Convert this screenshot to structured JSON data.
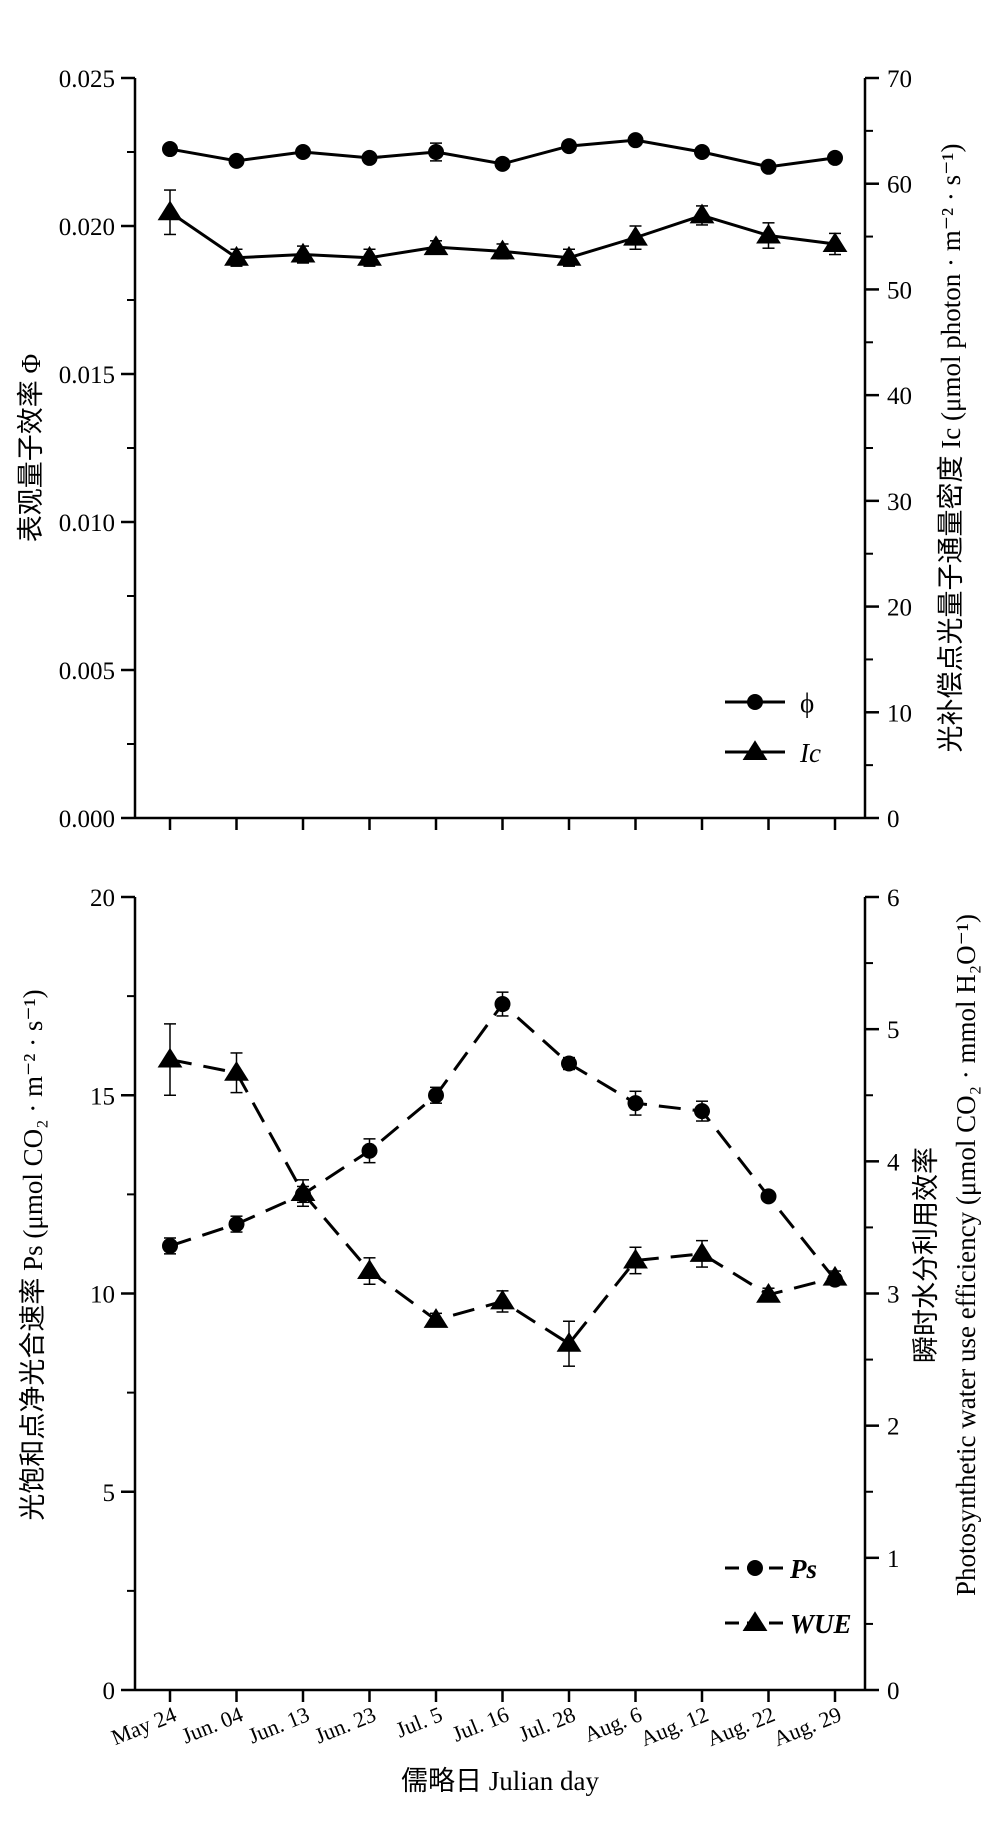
{
  "chart_data": [
    {
      "type": "line",
      "panel": "top",
      "x_categories": [
        "May 24",
        "Jun. 04",
        "Jun. 13",
        "Jun. 23",
        "Jul. 5",
        "Jul. 16",
        "Jul. 28",
        "Aug. 6",
        "Aug. 12",
        "Aug. 22",
        "Aug. 29"
      ],
      "left_axis": {
        "label": "表观量子效率 Φ",
        "ylim": [
          0.0,
          0.025
        ],
        "ticks": [
          0.0,
          0.005,
          0.01,
          0.015,
          0.02,
          0.025
        ],
        "tick_labels": [
          "0.000",
          "0.005",
          "0.010",
          "0.015",
          "0.020",
          "0.025"
        ]
      },
      "right_axis": {
        "label": "光补偿点光量子通量密度 Ic (μmol photon · m⁻² · s⁻¹)",
        "ylim": [
          0,
          70
        ],
        "ticks": [
          0,
          10,
          20,
          30,
          40,
          50,
          60,
          70
        ],
        "tick_labels": [
          "0",
          "10",
          "20",
          "30",
          "40",
          "50",
          "60",
          "70"
        ]
      },
      "series": [
        {
          "name": "ϕ",
          "axis": "left",
          "marker": "circle",
          "line": "solid",
          "values": [
            0.0226,
            0.0222,
            0.0225,
            0.0223,
            0.0225,
            0.0221,
            0.0227,
            0.0229,
            0.0225,
            0.022,
            0.0223
          ],
          "errors": [
            0.0001,
            0.0001,
            0.0001,
            0.0001,
            0.0003,
            0.0001,
            0.0001,
            0.0001,
            0.0001,
            0.0001,
            0.0001
          ]
        },
        {
          "name": "Ic",
          "axis": "right",
          "marker": "triangle",
          "line": "solid",
          "values": [
            57.3,
            53.0,
            53.3,
            53.0,
            54.0,
            53.6,
            53.0,
            54.9,
            57.0,
            55.1,
            54.3
          ],
          "errors": [
            2.1,
            0.8,
            0.8,
            0.8,
            0.6,
            0.7,
            0.8,
            1.1,
            0.9,
            1.2,
            1.0
          ]
        }
      ],
      "legend": {
        "position": "bottom-right"
      }
    },
    {
      "type": "line",
      "panel": "bottom",
      "x_categories": [
        "May 24",
        "Jun. 04",
        "Jun. 13",
        "Jun. 23",
        "Jul. 5",
        "Jul. 16",
        "Jul. 28",
        "Aug. 6",
        "Aug. 12",
        "Aug. 22",
        "Aug. 29"
      ],
      "xlabel": "儒略日 Julian day",
      "left_axis": {
        "label": "光饱和点净光合速率 Ps (μmol CO₂ · m⁻² · s⁻¹)",
        "ylim": [
          0,
          20
        ],
        "ticks": [
          0,
          5,
          10,
          15,
          20
        ],
        "tick_labels": [
          "0",
          "5",
          "10",
          "15",
          "20"
        ]
      },
      "right_axis": {
        "label_cn": "瞬时水分利用效率",
        "label_en": "Photosynthetic water use efficiency (μmol CO₂ · mmol H₂O⁻¹)",
        "ylim": [
          0,
          6
        ],
        "ticks": [
          0,
          1,
          2,
          3,
          4,
          5,
          6
        ],
        "tick_labels": [
          "0",
          "1",
          "2",
          "3",
          "4",
          "5",
          "6"
        ]
      },
      "series": [
        {
          "name": "Ps",
          "axis": "left",
          "marker": "circle",
          "line": "dashed",
          "values": [
            11.2,
            11.75,
            12.5,
            13.6,
            15.0,
            17.3,
            15.8,
            14.8,
            14.6,
            12.45,
            10.35
          ],
          "errors": [
            0.2,
            0.2,
            0.2,
            0.3,
            0.2,
            0.3,
            0.15,
            0.3,
            0.25,
            0.1,
            0.1
          ]
        },
        {
          "name": "WUE",
          "axis": "right",
          "marker": "triangle",
          "line": "dashed",
          "values": [
            4.77,
            4.67,
            3.76,
            3.17,
            2.8,
            2.94,
            2.62,
            3.25,
            3.3,
            2.99,
            3.12
          ],
          "errors": [
            0.27,
            0.15,
            0.1,
            0.1,
            0.05,
            0.08,
            0.17,
            0.1,
            0.1,
            0.05,
            0.05
          ]
        }
      ],
      "legend": {
        "position": "bottom-right"
      }
    }
  ]
}
